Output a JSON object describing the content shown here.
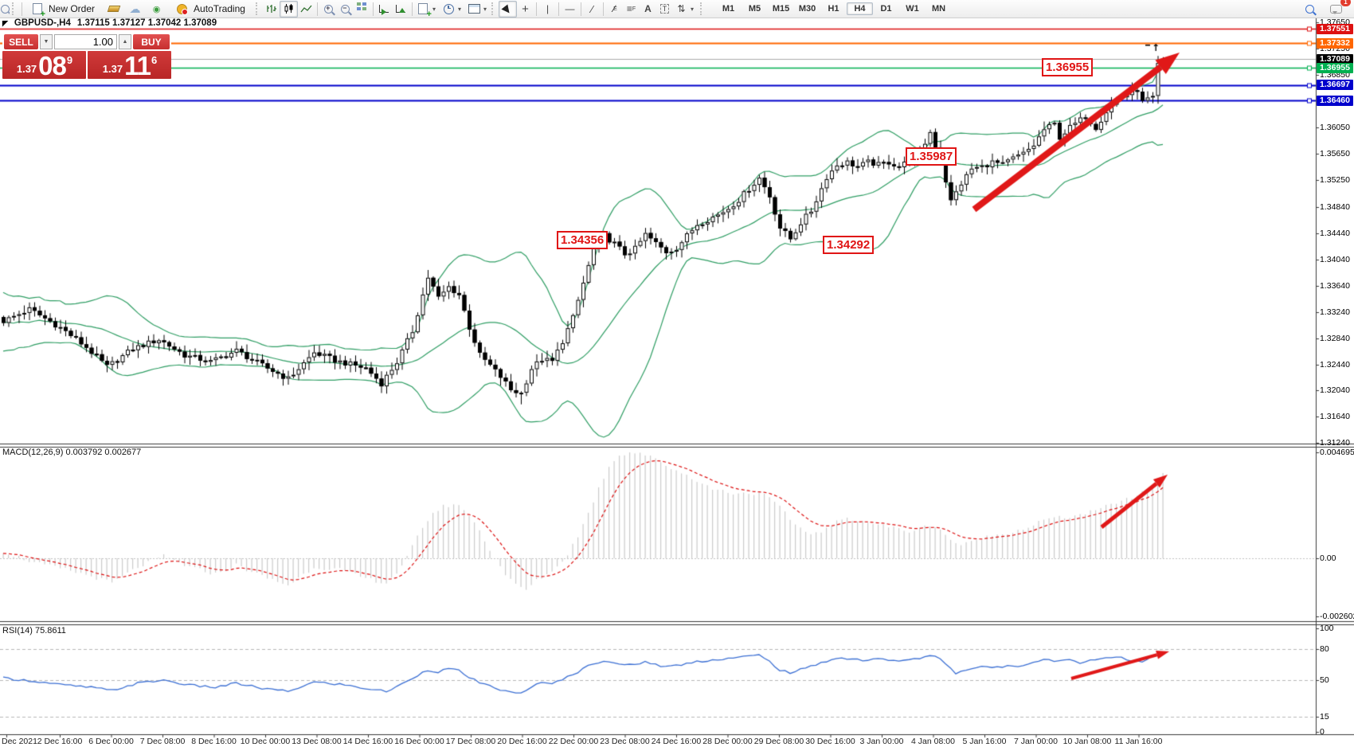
{
  "toolbar": {
    "new_order_label": "New Order",
    "autotrading_label": "AutoTrading",
    "timeframes": [
      "M1",
      "M5",
      "M15",
      "M30",
      "H1",
      "H4",
      "D1",
      "W1",
      "MN"
    ],
    "active_timeframe": "H4",
    "notification_count": "1",
    "text_tool_label": "A",
    "text_label_tool_label": "T"
  },
  "header": {
    "symbol": "GBPUSD-,H4",
    "ohlc": "1.37115 1.37127 1.37042 1.37089"
  },
  "trade_panel": {
    "sell_label": "SELL",
    "buy_label": "BUY",
    "volume": "1.00",
    "sell_price": {
      "prefix": "1.37",
      "big": "08",
      "sup": "9"
    },
    "buy_price": {
      "prefix": "1.37",
      "big": "11",
      "sup": "6"
    }
  },
  "price_axis": {
    "ticks": [
      "1.37650",
      "1.37250",
      "1.36850",
      "1.36050",
      "1.35650",
      "1.35250",
      "1.34840",
      "1.34440",
      "1.34040",
      "1.33640",
      "1.33240",
      "1.32840",
      "1.32440",
      "1.32040",
      "1.31640",
      "1.31240"
    ],
    "badges": [
      {
        "text": "1.37551",
        "color": "#dd1111",
        "line": "#dd1111",
        "lw": 1.4
      },
      {
        "text": "1.37332",
        "color": "#ff6600",
        "line": "#ff6600",
        "lw": 2
      },
      {
        "text": "1.37089",
        "color": "#000000",
        "line": "#aaaaaa",
        "lw": 1
      },
      {
        "text": "1.36955",
        "color": "#00b050",
        "line": "#00b050",
        "lw": 1.4
      },
      {
        "text": "1.36697",
        "color": "#0000cc",
        "line": "#0000cc",
        "lw": 2
      },
      {
        "text": "1.36460",
        "color": "#0000cc",
        "line": "#0000cc",
        "lw": 2
      }
    ]
  },
  "time_axis": {
    "labels": [
      "Dec 2021",
      "2 Dec 16:00",
      "6 Dec 00:00",
      "7 Dec 08:00",
      "8 Dec 16:00",
      "10 Dec 00:00",
      "13 Dec 08:00",
      "14 Dec 16:00",
      "16 Dec 00:00",
      "17 Dec 08:00",
      "20 Dec 16:00",
      "22 Dec 00:00",
      "23 Dec 08:00",
      "24 Dec 16:00",
      "28 Dec 00:00",
      "29 Dec 08:00",
      "30 Dec 16:00",
      "3 Jan 00:00",
      "4 Jan 08:00",
      "5 Jan 16:00",
      "7 Jan 00:00",
      "10 Jan 08:00",
      "11 Jan 16:00"
    ]
  },
  "annotations": [
    "1.34356",
    "1.34292",
    "1.35987",
    "1.36955"
  ],
  "chart_data": [
    {
      "type": "candlestick",
      "symbol": "GBPUSD-",
      "timeframe": "H4",
      "open": "1.37115",
      "high": "1.37127",
      "low": "1.37042",
      "close": "1.37089",
      "ylim": [
        1.3124,
        1.3765
      ],
      "horizontal_lines": [
        {
          "price": 1.37551,
          "color": "#dd1111"
        },
        {
          "price": 1.37332,
          "color": "#ff6600"
        },
        {
          "price": 1.37089,
          "color": "#aaaaaa"
        },
        {
          "price": 1.36955,
          "color": "#00b050"
        },
        {
          "price": 1.36697,
          "color": "#0000cc"
        },
        {
          "price": 1.3646,
          "color": "#0000cc"
        }
      ],
      "bollinger": {
        "period": 20,
        "deviation": 2,
        "color": "#2f9e64"
      },
      "candle_count": 225,
      "close_path": [
        [
          0,
          1.331
        ],
        [
          5,
          1.3328
        ],
        [
          11,
          1.33
        ],
        [
          16,
          1.327
        ],
        [
          20,
          1.324
        ],
        [
          25,
          1.3268
        ],
        [
          30,
          1.3282
        ],
        [
          35,
          1.3258
        ],
        [
          40,
          1.3248
        ],
        [
          45,
          1.3265
        ],
        [
          50,
          1.3242
        ],
        [
          55,
          1.3222
        ],
        [
          60,
          1.3262
        ],
        [
          64,
          1.325
        ],
        [
          70,
          1.3238
        ],
        [
          73,
          1.3215
        ],
        [
          76,
          1.3248
        ],
        [
          79,
          1.3295
        ],
        [
          81,
          1.335
        ],
        [
          82,
          1.3377
        ],
        [
          84,
          1.3345
        ],
        [
          86,
          1.3362
        ],
        [
          88,
          1.335
        ],
        [
          90,
          1.33
        ],
        [
          92,
          1.3258
        ],
        [
          94,
          1.3242
        ],
        [
          96,
          1.3225
        ],
        [
          98,
          1.3205
        ],
        [
          100,
          1.32
        ],
        [
          102,
          1.3238
        ],
        [
          104,
          1.3252
        ],
        [
          106,
          1.3248
        ],
        [
          108,
          1.328
        ],
        [
          110,
          1.3315
        ],
        [
          112,
          1.3368
        ],
        [
          114,
          1.342
        ],
        [
          116,
          1.344
        ],
        [
          118,
          1.3428
        ],
        [
          120,
          1.3412
        ],
        [
          122,
          1.342
        ],
        [
          124,
          1.3442
        ],
        [
          126,
          1.3428
        ],
        [
          128,
          1.3415
        ],
        [
          130,
          1.3422
        ],
        [
          132,
          1.344
        ],
        [
          134,
          1.3458
        ],
        [
          136,
          1.3465
        ],
        [
          138,
          1.3472
        ],
        [
          140,
          1.3482
        ],
        [
          142,
          1.3495
        ],
        [
          144,
          1.3512
        ],
        [
          146,
          1.3528
        ],
        [
          148,
          1.35
        ],
        [
          150,
          1.3452
        ],
        [
          152,
          1.3435
        ],
        [
          154,
          1.346
        ],
        [
          156,
          1.3478
        ],
        [
          158,
          1.3512
        ],
        [
          159,
          1.353
        ],
        [
          161,
          1.3548
        ],
        [
          163,
          1.3552
        ],
        [
          165,
          1.3545
        ],
        [
          167,
          1.3552
        ],
        [
          169,
          1.3548
        ],
        [
          171,
          1.3552
        ],
        [
          173,
          1.3545
        ],
        [
          175,
          1.3555
        ],
        [
          177,
          1.3565
        ],
        [
          179,
          1.3598
        ],
        [
          181,
          1.3555
        ],
        [
          183,
          1.3492
        ],
        [
          185,
          1.352
        ],
        [
          187,
          1.3542
        ],
        [
          189,
          1.3545
        ],
        [
          191,
          1.3552
        ],
        [
          193,
          1.3548
        ],
        [
          195,
          1.3558
        ],
        [
          197,
          1.3565
        ],
        [
          199,
          1.3578
        ],
        [
          201,
          1.3602
        ],
        [
          203,
          1.361
        ],
        [
          204,
          1.359
        ],
        [
          206,
          1.3605
        ],
        [
          209,
          1.3622
        ],
        [
          211,
          1.3605
        ],
        [
          213,
          1.363
        ],
        [
          215,
          1.3648
        ],
        [
          217,
          1.3655
        ],
        [
          219,
          1.366
        ],
        [
          220,
          1.3645
        ],
        [
          221,
          1.365
        ],
        [
          222,
          1.3652
        ],
        [
          223,
          1.3703
        ],
        [
          224,
          1.37089
        ]
      ]
    },
    {
      "type": "bar",
      "name": "MACD",
      "label": "MACD(12,26,9) 0.003792 0.002677",
      "macd_value": "0.003792",
      "signal_value": "0.002677",
      "scale": [
        "0.004695",
        "0.00",
        "-0.002602"
      ],
      "histogram_color": "#cccccc",
      "signal_color": "#dd1111",
      "path": [
        [
          0,
          0.0003
        ],
        [
          6,
          -0.0002
        ],
        [
          12,
          -0.0005
        ],
        [
          17,
          -0.0008
        ],
        [
          21,
          -0.0011
        ],
        [
          26,
          -0.0004
        ],
        [
          31,
          0.0001
        ],
        [
          36,
          -0.0004
        ],
        [
          41,
          -0.0007
        ],
        [
          45,
          -0.0003
        ],
        [
          50,
          -0.0008
        ],
        [
          55,
          -0.0012
        ],
        [
          60,
          -0.0004
        ],
        [
          65,
          -0.0005
        ],
        [
          70,
          -0.0009
        ],
        [
          74,
          -0.0011
        ],
        [
          77,
          -0.0004
        ],
        [
          79,
          0.0005
        ],
        [
          81,
          0.0014
        ],
        [
          83,
          0.002
        ],
        [
          85,
          0.0023
        ],
        [
          87,
          0.0024
        ],
        [
          89,
          0.0022
        ],
        [
          91,
          0.0016
        ],
        [
          93,
          0.0008
        ],
        [
          95,
          0.0
        ],
        [
          97,
          -0.0007
        ],
        [
          99,
          -0.0012
        ],
        [
          101,
          -0.0014
        ],
        [
          103,
          -0.001
        ],
        [
          105,
          -0.0007
        ],
        [
          107,
          -0.0004
        ],
        [
          109,
          0.0002
        ],
        [
          111,
          0.001
        ],
        [
          113,
          0.002
        ],
        [
          115,
          0.0031
        ],
        [
          117,
          0.0041
        ],
        [
          119,
          0.0046
        ],
        [
          121,
          0.0047
        ],
        [
          123,
          0.0047
        ],
        [
          125,
          0.0045
        ],
        [
          127,
          0.0043
        ],
        [
          129,
          0.004
        ],
        [
          131,
          0.0038
        ],
        [
          133,
          0.0036
        ],
        [
          135,
          0.0033
        ],
        [
          137,
          0.0031
        ],
        [
          139,
          0.003
        ],
        [
          141,
          0.0029
        ],
        [
          143,
          0.0029
        ],
        [
          145,
          0.0029
        ],
        [
          147,
          0.0028
        ],
        [
          149,
          0.0025
        ],
        [
          151,
          0.002
        ],
        [
          153,
          0.0015
        ],
        [
          155,
          0.0012
        ],
        [
          157,
          0.0011
        ],
        [
          159,
          0.0013
        ],
        [
          161,
          0.0016
        ],
        [
          163,
          0.0018
        ],
        [
          165,
          0.0017
        ],
        [
          167,
          0.0016
        ],
        [
          169,
          0.0015
        ],
        [
          171,
          0.0014
        ],
        [
          173,
          0.0013
        ],
        [
          175,
          0.0012
        ],
        [
          177,
          0.0013
        ],
        [
          179,
          0.0015
        ],
        [
          181,
          0.0013
        ],
        [
          183,
          0.0008
        ],
        [
          185,
          0.0006
        ],
        [
          187,
          0.0007
        ],
        [
          189,
          0.0009
        ],
        [
          191,
          0.001
        ],
        [
          193,
          0.0011
        ],
        [
          195,
          0.0012
        ],
        [
          197,
          0.0013
        ],
        [
          199,
          0.0015
        ],
        [
          201,
          0.0017
        ],
        [
          203,
          0.0018
        ],
        [
          205,
          0.0018
        ],
        [
          207,
          0.0019
        ],
        [
          209,
          0.002
        ],
        [
          211,
          0.0021
        ],
        [
          213,
          0.0023
        ],
        [
          215,
          0.0025
        ],
        [
          217,
          0.0026
        ],
        [
          219,
          0.0028
        ],
        [
          221,
          0.003
        ],
        [
          223,
          0.0035
        ],
        [
          224,
          0.0038
        ]
      ]
    },
    {
      "type": "line",
      "name": "RSI",
      "label": "RSI(14) 75.8611",
      "value": "75.8611",
      "scale": [
        "100",
        "80",
        "50",
        "15",
        "0"
      ],
      "levels": [
        80,
        50,
        15
      ],
      "color": "#3b6fd4",
      "path": [
        [
          0,
          52
        ],
        [
          6,
          49
        ],
        [
          12,
          45
        ],
        [
          17,
          43
        ],
        [
          21,
          40
        ],
        [
          26,
          47
        ],
        [
          31,
          50
        ],
        [
          36,
          45
        ],
        [
          41,
          43
        ],
        [
          45,
          47
        ],
        [
          50,
          42
        ],
        [
          55,
          39
        ],
        [
          60,
          48
        ],
        [
          65,
          46
        ],
        [
          70,
          42
        ],
        [
          74,
          39
        ],
        [
          77,
          46
        ],
        [
          79,
          52
        ],
        [
          82,
          60
        ],
        [
          84,
          58
        ],
        [
          86,
          61
        ],
        [
          88,
          59
        ],
        [
          90,
          53
        ],
        [
          92,
          47
        ],
        [
          94,
          44
        ],
        [
          96,
          41
        ],
        [
          98,
          38
        ],
        [
          100,
          37
        ],
        [
          102,
          44
        ],
        [
          104,
          47
        ],
        [
          106,
          46
        ],
        [
          108,
          51
        ],
        [
          110,
          55
        ],
        [
          112,
          61
        ],
        [
          114,
          66
        ],
        [
          116,
          69
        ],
        [
          118,
          67
        ],
        [
          120,
          64
        ],
        [
          122,
          65
        ],
        [
          124,
          68
        ],
        [
          126,
          65
        ],
        [
          128,
          63
        ],
        [
          130,
          64
        ],
        [
          132,
          66
        ],
        [
          134,
          68
        ],
        [
          136,
          69
        ],
        [
          138,
          70
        ],
        [
          140,
          71
        ],
        [
          142,
          72
        ],
        [
          144,
          73
        ],
        [
          146,
          74
        ],
        [
          148,
          68
        ],
        [
          150,
          60
        ],
        [
          152,
          57
        ],
        [
          154,
          60
        ],
        [
          156,
          63
        ],
        [
          158,
          67
        ],
        [
          160,
          70
        ],
        [
          162,
          71
        ],
        [
          164,
          71
        ],
        [
          166,
          69
        ],
        [
          168,
          70
        ],
        [
          170,
          70
        ],
        [
          172,
          69
        ],
        [
          174,
          69
        ],
        [
          176,
          70
        ],
        [
          178,
          72
        ],
        [
          180,
          74
        ],
        [
          182,
          66
        ],
        [
          184,
          57
        ],
        [
          186,
          60
        ],
        [
          188,
          62
        ],
        [
          190,
          63
        ],
        [
          192,
          62
        ],
        [
          194,
          64
        ],
        [
          196,
          64
        ],
        [
          198,
          66
        ],
        [
          200,
          69
        ],
        [
          202,
          70
        ],
        [
          204,
          68
        ],
        [
          206,
          70
        ],
        [
          208,
          67
        ],
        [
          210,
          69
        ],
        [
          212,
          71
        ],
        [
          214,
          72
        ],
        [
          216,
          72
        ],
        [
          218,
          69
        ],
        [
          220,
          68
        ],
        [
          222,
          73
        ],
        [
          223,
          75
        ],
        [
          224,
          75.86
        ]
      ]
    }
  ]
}
